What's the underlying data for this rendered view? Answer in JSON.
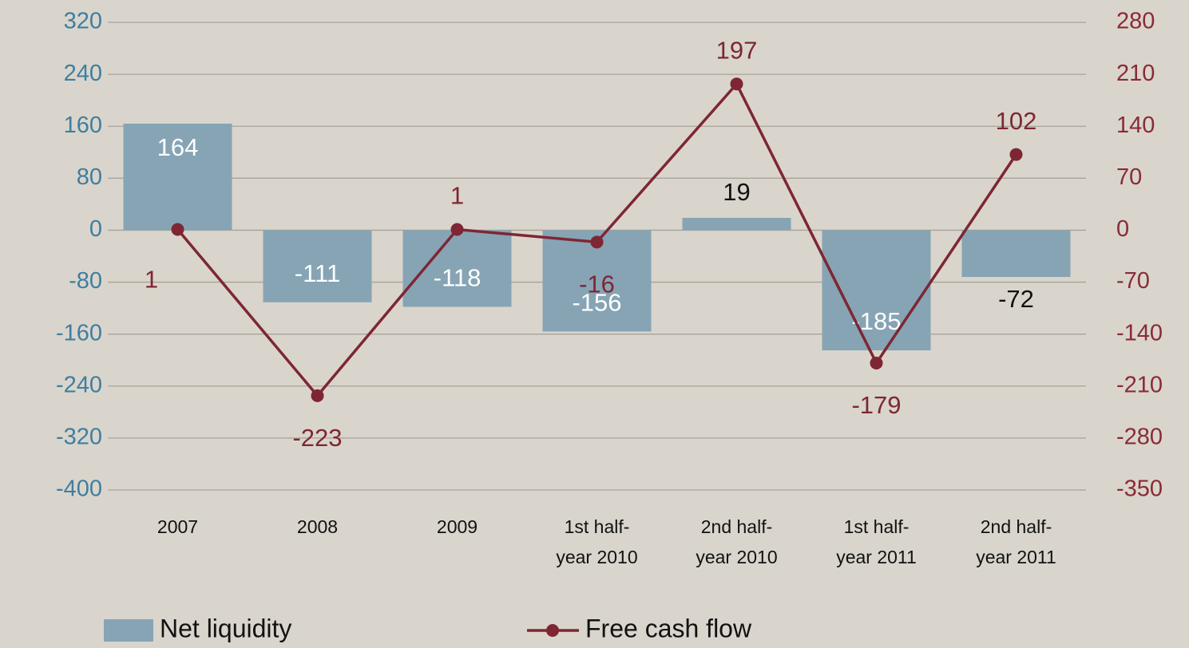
{
  "chart_data": {
    "type": "bar-line",
    "categories": [
      "2007",
      "2008",
      "2009",
      "1st half-\nyear 2010",
      "2nd half-\nyear 2010",
      "1st half-\nyear 2011",
      "2nd half-\nyear 2011"
    ],
    "series": [
      {
        "name": "Net liquidity",
        "type": "bar",
        "color": "#86a4b4",
        "axis": "y",
        "values": [
          164,
          -111,
          -118,
          -156,
          19,
          -185,
          -72
        ]
      },
      {
        "name": "Free cash flow",
        "type": "line",
        "color": "#7e2634",
        "axis": "y2",
        "values": [
          1,
          -223,
          1,
          -16,
          197,
          -179,
          102
        ]
      }
    ],
    "ylim": [
      -400,
      320
    ],
    "yticks": [
      -400,
      -320,
      -240,
      -160,
      -80,
      0,
      80,
      160,
      240,
      320
    ],
    "y2lim": [
      -350,
      280
    ],
    "y2ticks": [
      -350,
      -280,
      -210,
      -140,
      -70,
      0,
      70,
      140,
      210,
      280
    ],
    "grid": true,
    "legend": "bottom"
  }
}
